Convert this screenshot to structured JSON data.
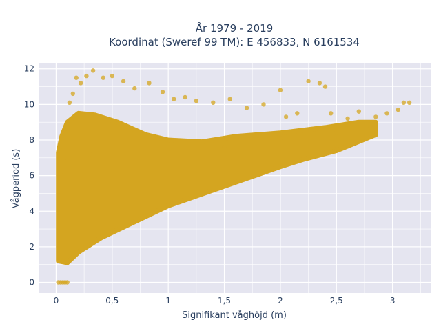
{
  "chart_data": {
    "type": "scatter",
    "title": "År 1979 - 2019",
    "subtitle": "Koordinat (Sweref 99 TM): E 456833, N 6161534",
    "xlabel": "Signifikant våghöjd (m)",
    "ylabel": "Vågperiod (s)",
    "xlim": [
      -0.15,
      3.34
    ],
    "ylim": [
      -0.6,
      12.3
    ],
    "x_ticks": [
      0,
      0.5,
      1,
      1.5,
      2,
      2.5,
      3
    ],
    "x_tick_labels": [
      "0",
      "0,5",
      "1",
      "1,5",
      "2",
      "2,5",
      "3"
    ],
    "y_ticks": [
      0,
      2,
      4,
      6,
      8,
      10,
      12
    ],
    "y_tick_labels": [
      "0",
      "2",
      "4",
      "6",
      "8",
      "10",
      "12"
    ],
    "grid": true,
    "legend": "none",
    "colors": {
      "marker": "#d4a520",
      "plot_bg": "#e5e5f0",
      "grid": "#ffffff",
      "text": "#2a3f5f"
    },
    "series": [
      {
        "points": [
          [
            0.02,
            0
          ],
          [
            0.04,
            0
          ],
          [
            0.06,
            0
          ],
          [
            0.08,
            0
          ],
          [
            0.1,
            0
          ],
          [
            0.12,
            10.1
          ],
          [
            0.15,
            10.6
          ],
          [
            0.18,
            11.5
          ],
          [
            0.22,
            11.2
          ],
          [
            0.27,
            11.6
          ],
          [
            0.33,
            11.9
          ],
          [
            0.42,
            11.5
          ],
          [
            0.5,
            11.6
          ],
          [
            0.6,
            11.3
          ],
          [
            0.7,
            10.9
          ],
          [
            0.83,
            11.2
          ],
          [
            0.95,
            10.7
          ],
          [
            1.05,
            10.3
          ],
          [
            1.15,
            10.4
          ],
          [
            1.25,
            10.2
          ],
          [
            1.4,
            10.1
          ],
          [
            1.55,
            10.3
          ],
          [
            1.7,
            9.8
          ],
          [
            1.85,
            10.0
          ],
          [
            2.0,
            10.8
          ],
          [
            2.05,
            9.3
          ],
          [
            2.15,
            9.5
          ],
          [
            2.25,
            11.3
          ],
          [
            2.35,
            11.2
          ],
          [
            2.4,
            11.0
          ],
          [
            2.45,
            9.5
          ],
          [
            2.6,
            9.2
          ],
          [
            2.7,
            9.6
          ],
          [
            2.85,
            9.3
          ],
          [
            2.95,
            9.5
          ],
          [
            3.05,
            9.7
          ],
          [
            3.1,
            10.1
          ],
          [
            3.15,
            10.1
          ],
          [
            0.05,
            6.0
          ],
          [
            0.1,
            6.8
          ],
          [
            0.3,
            7.2
          ],
          [
            0.5,
            7.0
          ],
          [
            1.0,
            7.3
          ],
          [
            1.5,
            7.6
          ],
          [
            2.0,
            8.1
          ],
          [
            2.5,
            8.4
          ],
          [
            2.8,
            8.8
          ],
          [
            0.06,
            1.2
          ],
          [
            0.2,
            2.0
          ],
          [
            0.5,
            3.2
          ],
          [
            1.0,
            4.5
          ],
          [
            1.5,
            5.6
          ],
          [
            2.0,
            6.7
          ],
          [
            2.5,
            7.5
          ]
        ]
      }
    ]
  }
}
